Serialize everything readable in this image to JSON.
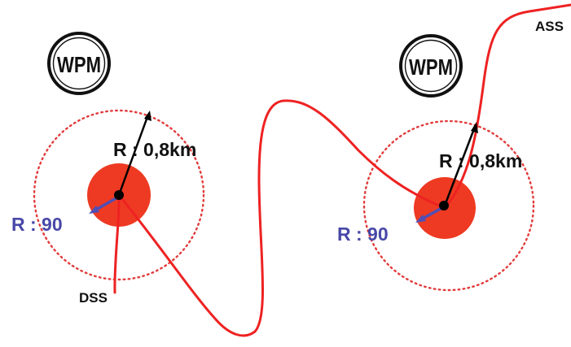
{
  "colors": {
    "route": "#ee2222",
    "zone_fill": "#ee3a22",
    "zone_dotted": "#e23b3b",
    "outer_arrow": "#000000",
    "inner_arrow": "#4f4fb5",
    "inner_label": "#4848a8",
    "text": "#111111"
  },
  "waypoints": [
    {
      "id": "wp1",
      "icon_label": "WPM",
      "outer_radius_label": "R : 0,8km",
      "inner_radius_label": "R : 90"
    },
    {
      "id": "wp2",
      "icon_label": "WPM",
      "outer_radius_label": "R : 0,8km",
      "inner_radius_label": "R : 90"
    }
  ],
  "route": {
    "start_label": "DSS",
    "end_label": "ASS"
  }
}
